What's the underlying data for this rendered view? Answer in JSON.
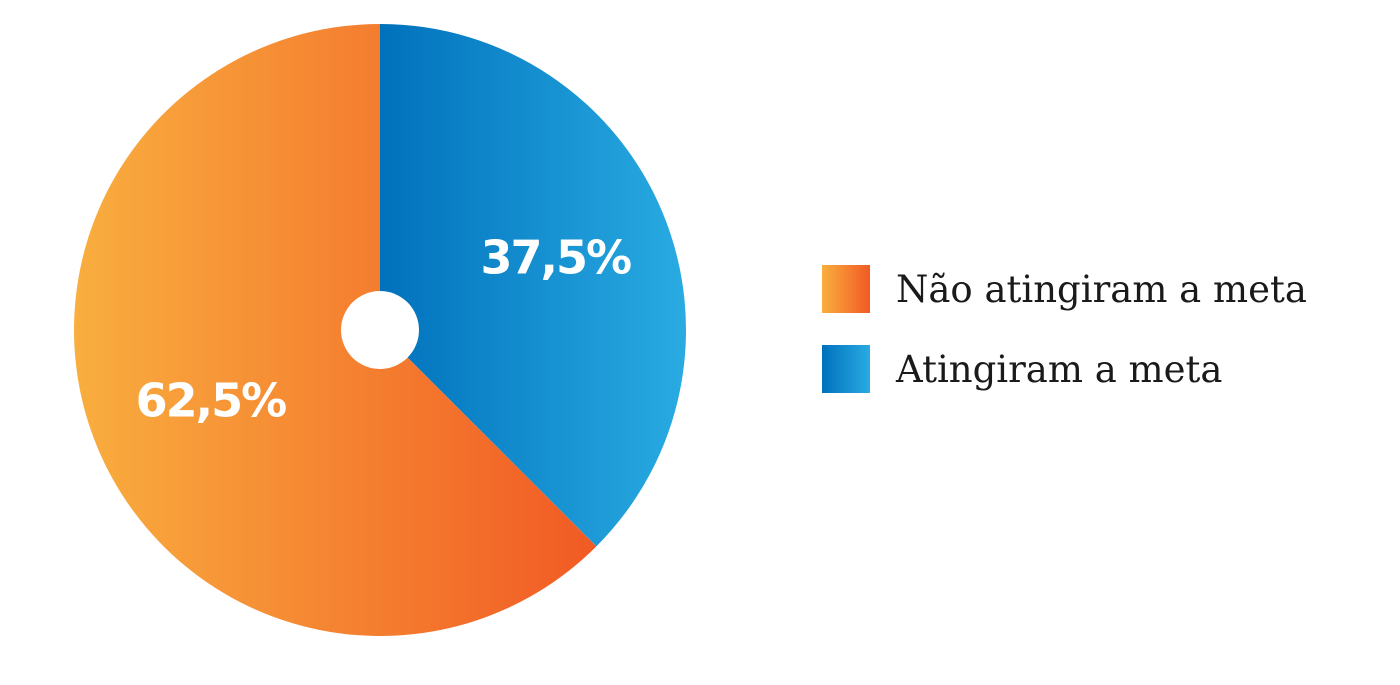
{
  "colors": {
    "orange_start": "#F9AE3F",
    "orange_end": "#F15A24",
    "blue_start": "#0071BC",
    "blue_end": "#29ABE2",
    "label_text": "#FFFFFF",
    "legend_text": "#1A1A1A"
  },
  "chart_data": {
    "type": "pie",
    "slices": [
      {
        "name": "Atingiram a meta",
        "value": 37.5,
        "label": "37,5%"
      },
      {
        "name": "Não atingiram a meta",
        "value": 62.5,
        "label": "62,5%"
      }
    ],
    "legend": {
      "placement": "right",
      "items": [
        "Não atingiram a meta",
        "Atingiram a meta"
      ]
    }
  }
}
